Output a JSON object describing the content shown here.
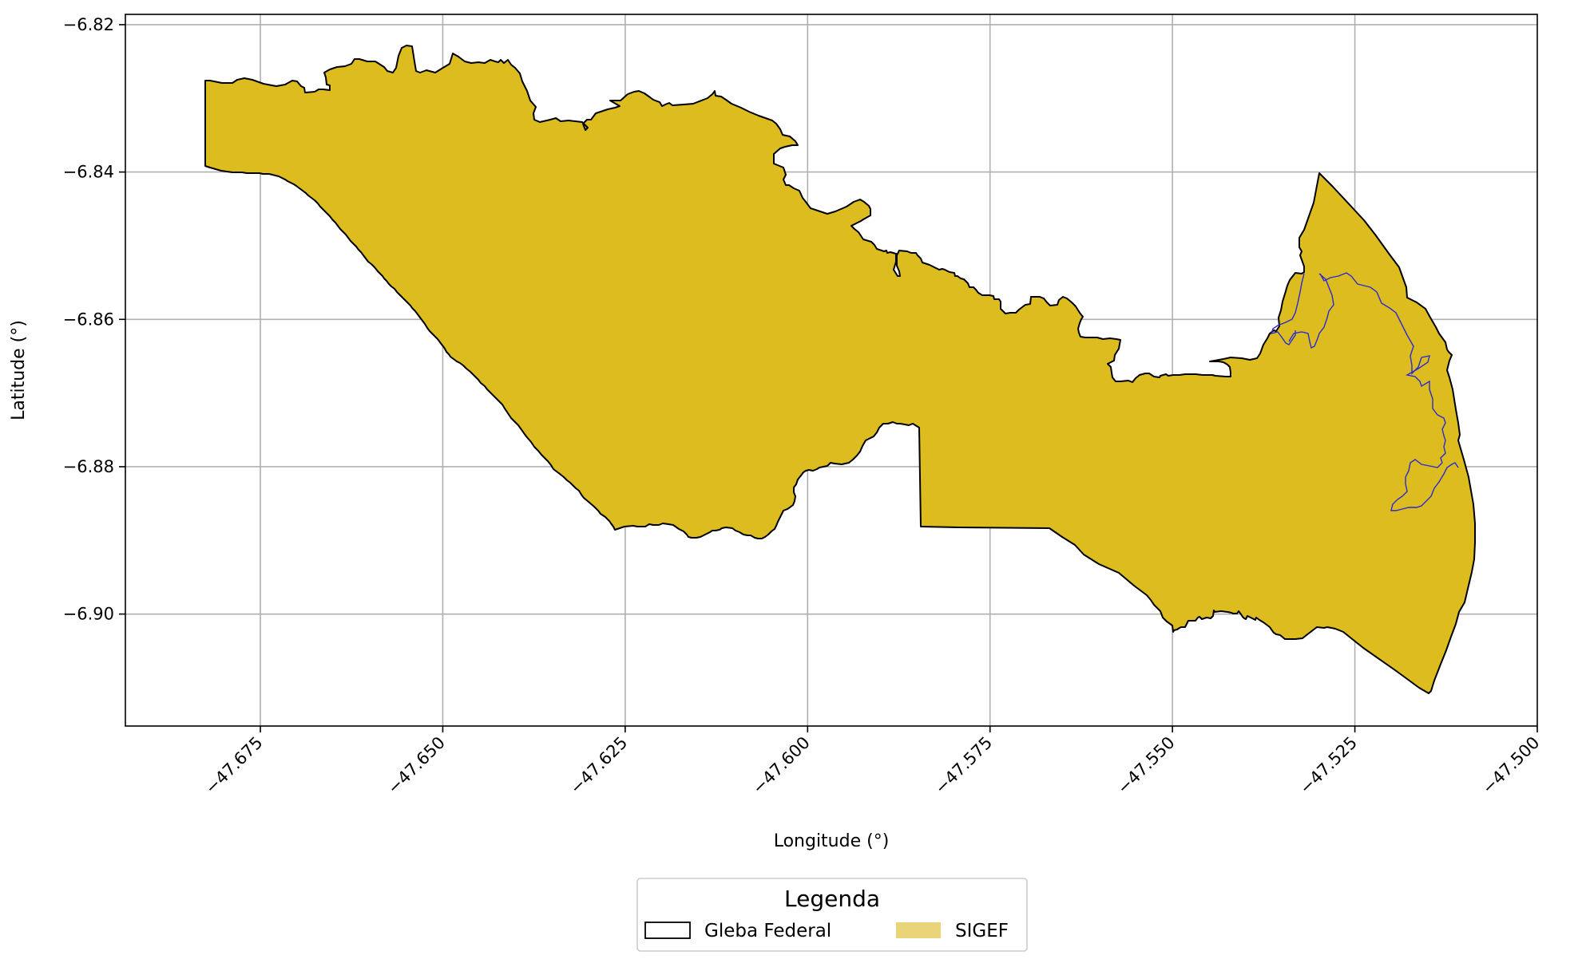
{
  "map": {
    "x_axis": {
      "label": "Longitude (°)",
      "ticks": [
        "−47.675",
        "−47.650",
        "−47.625",
        "−47.600",
        "−47.575",
        "−47.550",
        "−47.525",
        "−47.500"
      ],
      "tick_values": [
        -47.675,
        -47.65,
        -47.625,
        -47.6,
        -47.575,
        -47.55,
        -47.525,
        -47.5
      ],
      "range": [
        -47.6935,
        -47.5
      ]
    },
    "y_axis": {
      "label": "Latitude (°)",
      "ticks": [
        "−6.82",
        "−6.84",
        "−6.86",
        "−6.88",
        "−6.90"
      ],
      "tick_values": [
        -6.82,
        -6.84,
        -6.86,
        -6.88,
        -6.9
      ],
      "range": [
        -6.9152,
        -6.8186
      ]
    },
    "grid": true,
    "legend": {
      "placement": "bottom-center",
      "title": "Legenda",
      "items": [
        {
          "label": "Gleba Federal",
          "style": "outline",
          "edge_color": "#000000"
        },
        {
          "label": "SIGEF",
          "style": "fill",
          "fill_color": "#E9D47A"
        }
      ]
    },
    "layers": {
      "gleba_federal": {
        "name": "Gleba Federal",
        "edge_color": "#000000"
      },
      "sigef": {
        "name": "SIGEF",
        "fill_color": "#DDBC20",
        "inner_boundary_color": "#2A2AD0"
      }
    }
  }
}
